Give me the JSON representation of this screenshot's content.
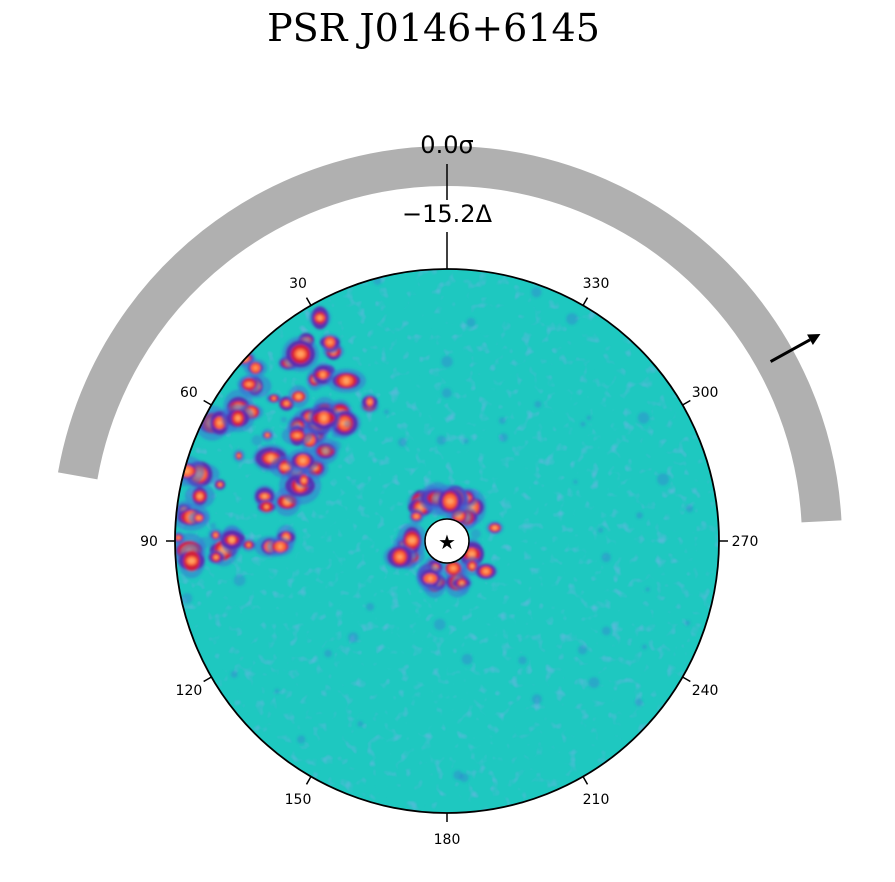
{
  "chart_data": {
    "type": "heatmap",
    "title": "PSR J0146+6145",
    "projection": "polar",
    "colormap": [
      "#1ec8c0",
      "#3b6fd8",
      "#5a2bb0",
      "#d11f3a",
      "#ff6a3a",
      "#ffa060"
    ],
    "background_level_color": "#1ec8c0",
    "center_marker": "star",
    "angle_ticks": [
      {
        "angle": 30,
        "label": "30"
      },
      {
        "angle": 60,
        "label": "60"
      },
      {
        "angle": 90,
        "label": "90"
      },
      {
        "angle": 120,
        "label": "120"
      },
      {
        "angle": 150,
        "label": "150"
      },
      {
        "angle": 180,
        "label": "180"
      },
      {
        "angle": 210,
        "label": "210"
      },
      {
        "angle": 240,
        "label": "240"
      },
      {
        "angle": 270,
        "label": "270"
      },
      {
        "angle": 300,
        "label": "300"
      },
      {
        "angle": 330,
        "label": "330"
      }
    ],
    "significance_label": "0.0σ",
    "offset_label": "−15.2Δ",
    "arc": {
      "start_angle": 80,
      "end_angle": 273,
      "color": "#b0b0b0"
    },
    "arrow_direction_angle": 299,
    "hot_regions": [
      {
        "name": "central-ring",
        "angle": 0,
        "radius_fraction": 0.0,
        "extent": 0.2
      },
      {
        "name": "upper-left-clumps",
        "angle_range": [
          25,
          95
        ],
        "radius_range": [
          0.55,
          1.0
        ]
      }
    ]
  }
}
